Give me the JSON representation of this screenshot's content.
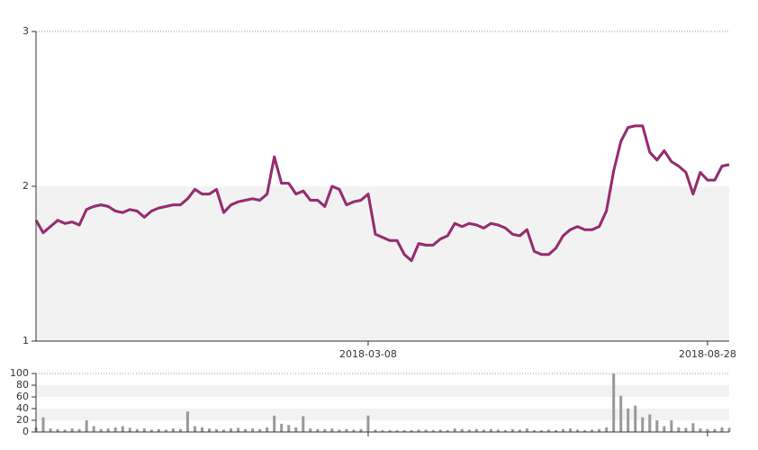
{
  "chart_data": [
    {
      "type": "line",
      "categories": [
        null,
        null,
        null,
        null,
        null,
        null,
        null,
        null,
        null,
        null,
        null,
        null,
        null,
        null,
        null,
        null,
        null,
        null,
        null,
        null,
        null,
        null,
        null,
        null,
        null,
        null,
        null,
        null,
        null,
        null,
        null,
        null,
        null,
        null,
        null,
        null,
        null,
        null,
        null,
        null,
        null,
        null,
        null,
        null,
        null,
        null,
        "2018-03-08",
        null,
        null,
        null,
        null,
        null,
        null,
        null,
        null,
        null,
        null,
        null,
        null,
        null,
        null,
        null,
        null,
        null,
        null,
        null,
        null,
        null,
        null,
        null,
        null,
        null,
        null,
        null,
        null,
        null,
        null,
        null,
        null,
        null,
        null,
        null,
        null,
        null,
        null,
        null,
        null,
        null,
        null,
        null,
        null,
        null,
        null,
        "2018-08-28",
        null,
        null,
        null
      ],
      "values": [
        1.78,
        1.7,
        1.74,
        1.78,
        1.76,
        1.77,
        1.75,
        1.85,
        1.87,
        1.88,
        1.87,
        1.84,
        1.83,
        1.85,
        1.84,
        1.8,
        1.84,
        1.86,
        1.87,
        1.88,
        1.88,
        1.92,
        1.98,
        1.95,
        1.95,
        1.98,
        1.83,
        1.88,
        1.9,
        1.91,
        1.92,
        1.91,
        1.95,
        2.19,
        2.02,
        2.02,
        1.95,
        1.97,
        1.91,
        1.91,
        1.87,
        2.0,
        1.98,
        1.88,
        1.9,
        1.91,
        1.95,
        1.69,
        1.67,
        1.65,
        1.65,
        1.56,
        1.52,
        1.63,
        1.62,
        1.62,
        1.66,
        1.68,
        1.76,
        1.74,
        1.76,
        1.75,
        1.73,
        1.76,
        1.75,
        1.73,
        1.69,
        1.68,
        1.72,
        1.58,
        1.56,
        1.56,
        1.6,
        1.68,
        1.72,
        1.74,
        1.72,
        1.72,
        1.74,
        1.84,
        2.1,
        2.29,
        2.38,
        2.39,
        2.39,
        2.22,
        2.17,
        2.23,
        2.16,
        2.13,
        2.09,
        1.95,
        2.09,
        2.04,
        2.04,
        2.13,
        2.14
      ],
      "color": "#b5286b",
      "ylim": [
        1,
        3
      ],
      "yticks": [
        1,
        2,
        3
      ]
    },
    {
      "type": "bar",
      "values": [
        8,
        25,
        6,
        5,
        4,
        6,
        5,
        20,
        10,
        5,
        6,
        8,
        10,
        7,
        5,
        6,
        4,
        5,
        4,
        6,
        5,
        35,
        10,
        8,
        6,
        5,
        4,
        6,
        7,
        5,
        6,
        5,
        8,
        28,
        14,
        12,
        8,
        27,
        6,
        5,
        5,
        6,
        4,
        5,
        4,
        5,
        28,
        4,
        3,
        3,
        3,
        3,
        3,
        4,
        4,
        3,
        4,
        3,
        6,
        5,
        4,
        5,
        4,
        5,
        4,
        3,
        5,
        4,
        6,
        3,
        3,
        4,
        3,
        5,
        6,
        4,
        3,
        4,
        5,
        8,
        100,
        62,
        40,
        45,
        25,
        30,
        20,
        10,
        20,
        8,
        7,
        15,
        6,
        5,
        5,
        8,
        7
      ],
      "color": "#999999",
      "ylim": [
        0,
        100
      ],
      "yticks": [
        0,
        20,
        40,
        60,
        80,
        100
      ]
    }
  ]
}
